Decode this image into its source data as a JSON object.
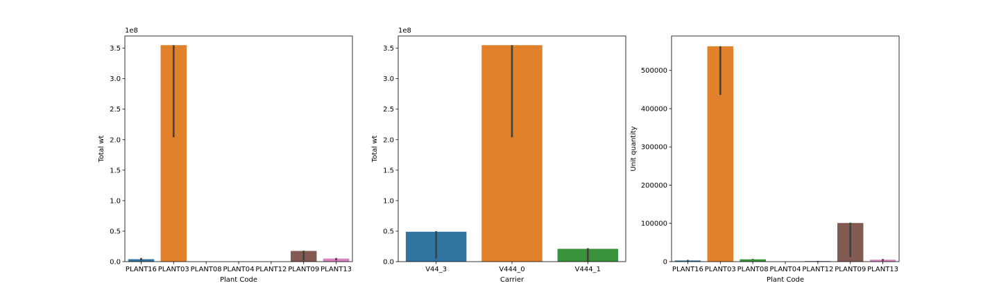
{
  "chart_data": [
    {
      "type": "bar",
      "xlabel": "Plant Code",
      "ylabel": "Total wt",
      "offset_label": "1e8",
      "tick_scale": 100000000,
      "ylim": [
        0,
        370000000
      ],
      "yticks": [
        0,
        50000000,
        100000000,
        150000000,
        200000000,
        250000000,
        300000000,
        350000000
      ],
      "ytick_labels": [
        "0.0",
        "0.5",
        "1.0",
        "1.5",
        "2.0",
        "2.5",
        "3.0",
        "3.5"
      ],
      "grid": false,
      "categories": [
        "PLANT16",
        "PLANT03",
        "PLANT08",
        "PLANT04",
        "PLANT12",
        "PLANT09",
        "PLANT13"
      ],
      "values": [
        4000000,
        355000000,
        0,
        0,
        0,
        17500000,
        5000000
      ],
      "error_bars": [
        [
          2000000,
          6000000
        ],
        [
          204000000,
          355000000
        ],
        null,
        null,
        null,
        [
          2000000,
          18000000
        ],
        [
          2000000,
          6000000
        ]
      ],
      "colors": [
        "#3274a1",
        "#e1812c",
        "#3a923a",
        "#c03d3e",
        "#9372b2",
        "#845b53",
        "#d684bd"
      ]
    },
    {
      "type": "bar",
      "xlabel": "Carrier",
      "ylabel": "Total wt",
      "offset_label": "1e8",
      "tick_scale": 100000000,
      "ylim": [
        0,
        370000000
      ],
      "yticks": [
        0,
        50000000,
        100000000,
        150000000,
        200000000,
        250000000,
        300000000,
        350000000
      ],
      "ytick_labels": [
        "0.0",
        "0.5",
        "1.0",
        "1.5",
        "2.0",
        "2.5",
        "3.0",
        "3.5"
      ],
      "grid": false,
      "categories": [
        "V44_3",
        "V444_0",
        "V444_1"
      ],
      "values": [
        49000000,
        355000000,
        21000000
      ],
      "error_bars": [
        [
          5000000,
          50000000
        ],
        [
          204000000,
          355000000
        ],
        [
          0,
          22000000
        ]
      ],
      "colors": [
        "#3274a1",
        "#e1812c",
        "#3a923a"
      ]
    },
    {
      "type": "bar",
      "xlabel": "Plant Code",
      "ylabel": "Unit quantity",
      "offset_label": "",
      "tick_scale": 1,
      "ylim": [
        0,
        590000
      ],
      "yticks": [
        0,
        100000,
        200000,
        300000,
        400000,
        500000
      ],
      "ytick_labels": [
        "0",
        "100000",
        "200000",
        "300000",
        "400000",
        "500000"
      ],
      "grid": false,
      "categories": [
        "PLANT16",
        "PLANT03",
        "PLANT08",
        "PLANT04",
        "PLANT12",
        "PLANT09",
        "PLANT13"
      ],
      "values": [
        3000,
        563000,
        6000,
        0,
        1500,
        101000,
        5000
      ],
      "error_bars": [
        [
          1500,
          4500
        ],
        [
          436000,
          563000
        ],
        [
          5000,
          7000
        ],
        null,
        [
          500,
          2000
        ],
        [
          12000,
          102000
        ],
        [
          2000,
          7000
        ]
      ],
      "colors": [
        "#3274a1",
        "#e1812c",
        "#3a923a",
        "#c03d3e",
        "#9372b2",
        "#845b53",
        "#d684bd"
      ]
    }
  ]
}
